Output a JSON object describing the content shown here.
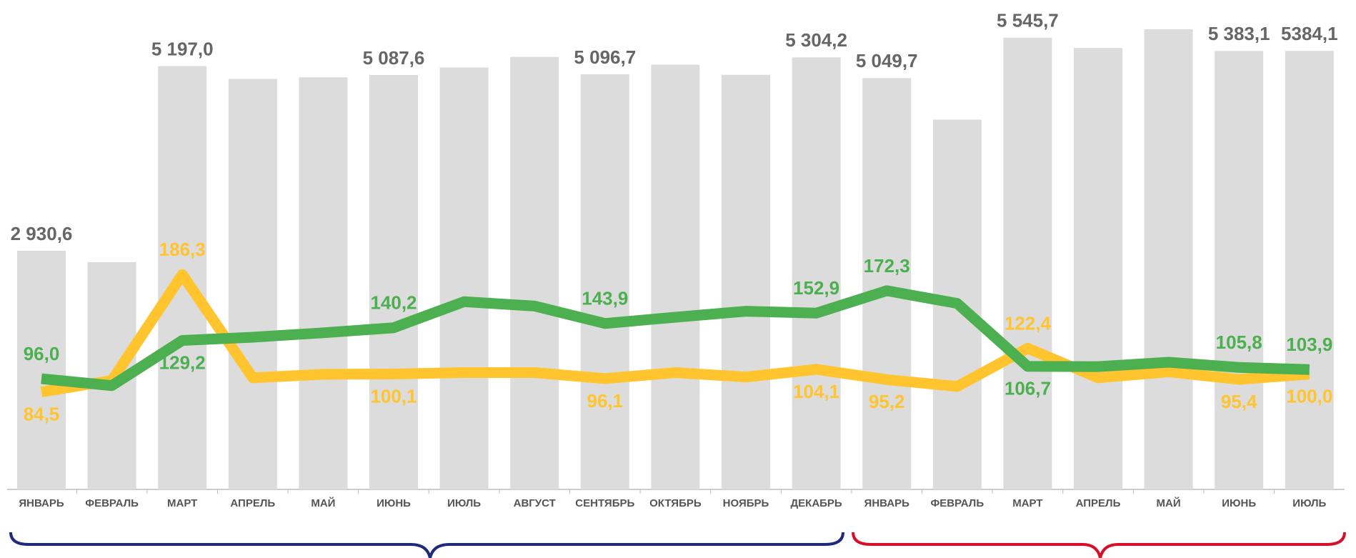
{
  "chart_data": {
    "type": "bar",
    "categories": [
      "ЯНВАРЬ",
      "ФЕВРАЛЬ",
      "МАРТ",
      "АПРЕЛЬ",
      "МАЙ",
      "ИЮНЬ",
      "ИЮЛЬ",
      "АВГУСТ",
      "СЕНТЯБРЬ",
      "ОКТЯБРЬ",
      "НОЯБРЬ",
      "ДЕКАБРЬ",
      "ЯНВАРЬ",
      "ФЕВРАЛЬ",
      "МАРТ",
      "АПРЕЛЬ",
      "МАЙ",
      "ИЮНЬ",
      "ИЮЛЬ"
    ],
    "values": [
      2930.6,
      2790,
      5197.0,
      5040,
      5060,
      5087.6,
      5180,
      5310,
      5096.7,
      5215,
      5090,
      5304.2,
      5049.7,
      4540,
      5545.7,
      5420,
      5650,
      5383.1,
      5384.1
    ],
    "value_labels": [
      "2 930,6",
      null,
      "5 197,0",
      null,
      null,
      "5 087,6",
      null,
      null,
      "5 096,7",
      null,
      null,
      "5 304,2",
      "5 049,7",
      null,
      "5 545,7",
      null,
      null,
      "5 383,1",
      "5384,1"
    ],
    "color": "#dcdcdc",
    "series": [
      {
        "type": "line",
        "color": "#ffc42e",
        "values": [
          84.5,
          94.5,
          186.3,
          96.8,
          99.8,
          100.1,
          101.3,
          101.3,
          96.1,
          101.3,
          97.5,
          104.1,
          95.2,
          89.3,
          122.4,
          96.8,
          102,
          95.4,
          100.0
        ],
        "value_labels": [
          "84,5",
          null,
          "186,3",
          null,
          null,
          "100,1",
          null,
          null,
          "96,1",
          null,
          null,
          "104,1",
          "95,2",
          null,
          "122,4",
          null,
          null,
          "95,4",
          "100,0"
        ]
      },
      {
        "type": "line",
        "color": "#4caf50",
        "values": [
          96.0,
          90.0,
          129.2,
          132,
          135.8,
          140.2,
          162.8,
          159,
          143.9,
          149.3,
          154.5,
          152.9,
          172.3,
          161.3,
          106.7,
          106.5,
          110.3,
          105.8,
          103.9
        ],
        "value_labels": [
          "96,0",
          null,
          "129,2",
          null,
          null,
          "140,2",
          null,
          null,
          "143,9",
          null,
          null,
          "152,9",
          "172,3",
          null,
          "106,7",
          null,
          null,
          "105,8",
          "103,9"
        ]
      }
    ]
  }
}
